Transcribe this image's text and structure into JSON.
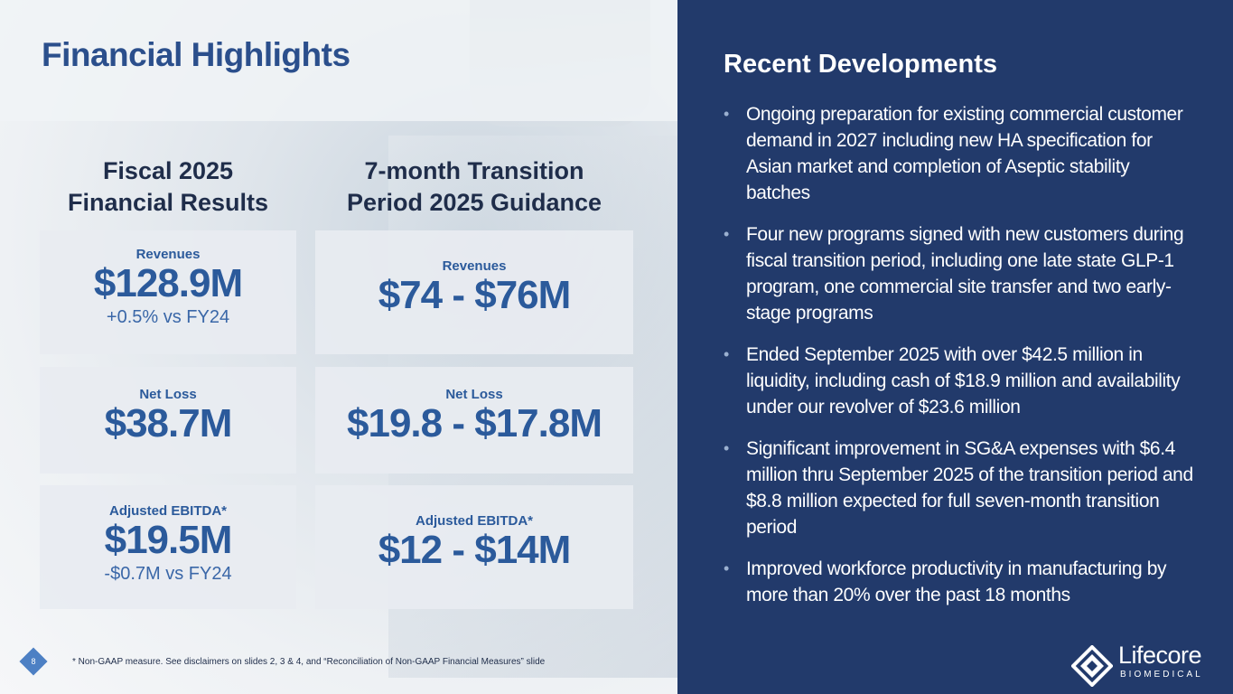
{
  "left": {
    "title": "Financial Highlights",
    "col1": {
      "line1": "Fiscal 2025",
      "line2": "Financial Results"
    },
    "col2": {
      "line1": "7-month Transition",
      "line2": "Period 2025 Guidance"
    },
    "boxes": [
      {
        "label": "Revenues",
        "value": "$128.9M",
        "sub": "+0.5% vs FY24"
      },
      {
        "label": "Revenues",
        "value": "$74 - $76M",
        "sub": ""
      },
      {
        "label": "Net Loss",
        "value": "$38.7M",
        "sub": ""
      },
      {
        "label": "Net Loss",
        "value": "$19.8 - $17.8M",
        "sub": ""
      },
      {
        "label": "Adjusted EBITDA*",
        "value": "$19.5M",
        "sub": "-$0.7M vs FY24"
      },
      {
        "label": "Adjusted EBITDA*",
        "value": "$12 - $14M",
        "sub": ""
      }
    ],
    "footnote": "* Non-GAAP measure.  See disclaimers on slides 2, 3 & 4, and “Reconciliation of Non-GAAP Financial Measures” slide",
    "page_number": "8"
  },
  "right": {
    "title": "Recent Developments",
    "bullet_char": "•",
    "bullets": [
      "Ongoing preparation for existing commercial customer demand in 2027 including new HA specification for Asian market and completion of Aseptic stability batches",
      "Four new programs signed with new customers during fiscal transition period, including one late state GLP-1 program, one commercial site transfer and two early-stage programs",
      "Ended September 2025 with over $42.5 million in liquidity, including cash of $18.9 million and availability under our revolver of $23.6 million",
      "Significant improvement in SG&A expenses with $6.4 million thru September 2025 of the transition period and $8.8 million expected for full seven-month transition period",
      "Improved workforce productivity in manufacturing by more than 20% over the past 18 months"
    ]
  },
  "logo": {
    "name": "Lifecore",
    "sub": "BIOMEDICAL",
    "icon": "lifecore-diamond-icon"
  },
  "colors": {
    "navy": "#223a6b",
    "title_blue": "#2b4f8c",
    "value_blue": "#2b5a9b",
    "badge": "#4d80c4"
  }
}
